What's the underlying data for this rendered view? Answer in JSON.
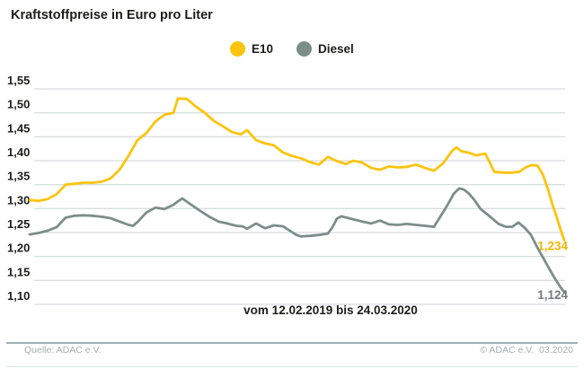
{
  "title": "Kraftstoffpreise in Euro pro Liter",
  "legend": [
    {
      "label": "E10",
      "color": "#FBC40E"
    },
    {
      "label": "Diesel",
      "color": "#7C8E89"
    }
  ],
  "caption": "vom 12.02.2019 bis 24.03.2020",
  "footer": {
    "source": "Quelle: ADAC e.V.",
    "copyright": "© ADAC e.V.  03.2020"
  },
  "colors": {
    "grid": "#CCD2D4",
    "text": "#1D1D1B",
    "e10": "#FBC40E",
    "e10_label": "#F0B400",
    "diesel": "#7C8E89",
    "diesel_label": "#6E7F7B"
  },
  "chart_data": {
    "type": "line",
    "title": "Kraftstoffpreise in Euro pro Liter",
    "x_axis": {
      "label": "vom 12.02.2019 bis 24.03.2020",
      "start": "12.02.2019",
      "end": "24.03.2020"
    },
    "y_axis": {
      "unit": "Euro pro Liter",
      "min": 1.1,
      "max": 1.55,
      "step": 0.05,
      "grid": true,
      "tick_labels": [
        "1,55",
        "1,50",
        "1,45",
        "1,40",
        "1,35",
        "1,30",
        "1,25",
        "1,20",
        "1,15",
        "1,10"
      ]
    },
    "legend_position": "top",
    "series": [
      {
        "name": "E10",
        "color": "#FBC40E",
        "label_color": "#F0B400",
        "end_label": "1,234",
        "end_value": 1.234,
        "points": [
          [
            33,
            1.318
          ],
          [
            43,
            1.316
          ],
          [
            53,
            1.32
          ],
          [
            63,
            1.33
          ],
          [
            73,
            1.35
          ],
          [
            83,
            1.352
          ],
          [
            93,
            1.354
          ],
          [
            103,
            1.354
          ],
          [
            113,
            1.356
          ],
          [
            123,
            1.363
          ],
          [
            133,
            1.381
          ],
          [
            143,
            1.41
          ],
          [
            153,
            1.443
          ],
          [
            163,
            1.458
          ],
          [
            173,
            1.482
          ],
          [
            183,
            1.496
          ],
          [
            193,
            1.5
          ],
          [
            198,
            1.53
          ],
          [
            208,
            1.529
          ],
          [
            218,
            1.513
          ],
          [
            228,
            1.5
          ],
          [
            238,
            1.483
          ],
          [
            248,
            1.472
          ],
          [
            258,
            1.46
          ],
          [
            268,
            1.455
          ],
          [
            275,
            1.464
          ],
          [
            285,
            1.443
          ],
          [
            295,
            1.436
          ],
          [
            305,
            1.432
          ],
          [
            315,
            1.417
          ],
          [
            325,
            1.41
          ],
          [
            335,
            1.405
          ],
          [
            345,
            1.397
          ],
          [
            355,
            1.392
          ],
          [
            365,
            1.408
          ],
          [
            375,
            1.399
          ],
          [
            385,
            1.393
          ],
          [
            393,
            1.4
          ],
          [
            403,
            1.396
          ],
          [
            413,
            1.385
          ],
          [
            423,
            1.381
          ],
          [
            433,
            1.388
          ],
          [
            443,
            1.386
          ],
          [
            453,
            1.387
          ],
          [
            463,
            1.392
          ],
          [
            473,
            1.385
          ],
          [
            483,
            1.379
          ],
          [
            493,
            1.394
          ],
          [
            503,
            1.42
          ],
          [
            508,
            1.428
          ],
          [
            513,
            1.42
          ],
          [
            523,
            1.416
          ],
          [
            530,
            1.411
          ],
          [
            540,
            1.415
          ],
          [
            545,
            1.397
          ],
          [
            550,
            1.377
          ],
          [
            560,
            1.375
          ],
          [
            570,
            1.375
          ],
          [
            578,
            1.377
          ],
          [
            585,
            1.386
          ],
          [
            592,
            1.391
          ],
          [
            598,
            1.39
          ],
          [
            604,
            1.372
          ],
          [
            610,
            1.34
          ],
          [
            615,
            1.308
          ],
          [
            620,
            1.28
          ],
          [
            624,
            1.256
          ],
          [
            628,
            1.234
          ]
        ]
      },
      {
        "name": "Diesel",
        "color": "#7C8E89",
        "label_color": "#6E7F7B",
        "end_label": "1,124",
        "end_value": 1.124,
        "points": [
          [
            33,
            1.246
          ],
          [
            43,
            1.249
          ],
          [
            53,
            1.254
          ],
          [
            63,
            1.261
          ],
          [
            73,
            1.281
          ],
          [
            83,
            1.285
          ],
          [
            93,
            1.286
          ],
          [
            103,
            1.285
          ],
          [
            113,
            1.283
          ],
          [
            123,
            1.28
          ],
          [
            133,
            1.273
          ],
          [
            143,
            1.266
          ],
          [
            148,
            1.264
          ],
          [
            153,
            1.272
          ],
          [
            163,
            1.292
          ],
          [
            173,
            1.302
          ],
          [
            183,
            1.299
          ],
          [
            193,
            1.308
          ],
          [
            198,
            1.315
          ],
          [
            203,
            1.321
          ],
          [
            213,
            1.308
          ],
          [
            223,
            1.295
          ],
          [
            233,
            1.283
          ],
          [
            243,
            1.273
          ],
          [
            253,
            1.269
          ],
          [
            263,
            1.264
          ],
          [
            270,
            1.263
          ],
          [
            275,
            1.258
          ],
          [
            285,
            1.269
          ],
          [
            295,
            1.259
          ],
          [
            305,
            1.265
          ],
          [
            315,
            1.263
          ],
          [
            325,
            1.251
          ],
          [
            330,
            1.245
          ],
          [
            335,
            1.242
          ],
          [
            345,
            1.243
          ],
          [
            355,
            1.245
          ],
          [
            365,
            1.248
          ],
          [
            370,
            1.261
          ],
          [
            375,
            1.279
          ],
          [
            380,
            1.284
          ],
          [
            390,
            1.279
          ],
          [
            403,
            1.273
          ],
          [
            413,
            1.269
          ],
          [
            423,
            1.275
          ],
          [
            433,
            1.267
          ],
          [
            443,
            1.266
          ],
          [
            453,
            1.268
          ],
          [
            463,
            1.266
          ],
          [
            473,
            1.264
          ],
          [
            483,
            1.262
          ],
          [
            490,
            1.283
          ],
          [
            495,
            1.298
          ],
          [
            500,
            1.314
          ],
          [
            505,
            1.331
          ],
          [
            511,
            1.342
          ],
          [
            516,
            1.34
          ],
          [
            521,
            1.333
          ],
          [
            528,
            1.318
          ],
          [
            535,
            1.299
          ],
          [
            545,
            1.284
          ],
          [
            555,
            1.268
          ],
          [
            563,
            1.262
          ],
          [
            570,
            1.262
          ],
          [
            577,
            1.271
          ],
          [
            584,
            1.26
          ],
          [
            591,
            1.245
          ],
          [
            598,
            1.219
          ],
          [
            604,
            1.199
          ],
          [
            610,
            1.179
          ],
          [
            616,
            1.159
          ],
          [
            622,
            1.141
          ],
          [
            626,
            1.13
          ],
          [
            629,
            1.124
          ]
        ]
      }
    ]
  }
}
